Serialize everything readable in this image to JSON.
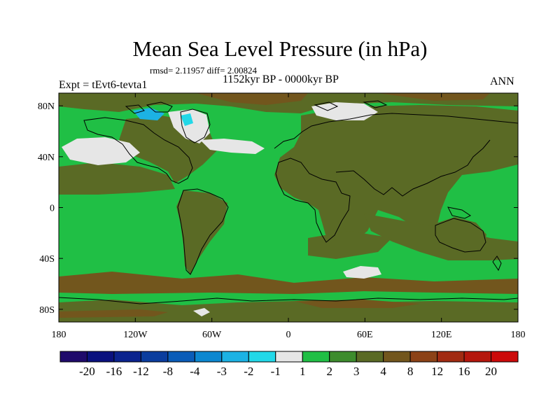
{
  "title": "Mean Sea Level Pressure (in hPa)",
  "stats_line": "rmsd= 2.11957 diff= 2.00824",
  "subtitle": "1152kyr BP - 0000kyr BP",
  "experiment_label": "Expt = tEvt6-tevta1",
  "season_label": "ANN",
  "map": {
    "projection": "cylindrical equidistant",
    "lon_range": [
      -180,
      180
    ],
    "lat_range": [
      -90,
      90
    ],
    "lat_tick_labels": [
      "80N",
      "40N",
      "0",
      "40S",
      "80S"
    ],
    "lat_tick_values": [
      80,
      40,
      0,
      -40,
      -80
    ],
    "lon_tick_labels": [
      "180",
      "120W",
      "60W",
      "0",
      "60E",
      "120E",
      "180"
    ],
    "lon_tick_values": [
      -180,
      -120,
      -60,
      0,
      60,
      120,
      180
    ],
    "dominant_ocean_range": "1 to 2",
    "dominant_land_range": "2 to 4"
  },
  "colorbar": {
    "labels": [
      "-20",
      "-16",
      "-12",
      "-8",
      "-4",
      "-3",
      "-2",
      "-1",
      "1",
      "2",
      "3",
      "4",
      "8",
      "12",
      "16",
      "20"
    ],
    "colors": [
      "#1f0a6b",
      "#0a117e",
      "#0b238e",
      "#0b3d9e",
      "#0a5cb8",
      "#0c87d0",
      "#1cb2e4",
      "#22d8e8",
      "#e6e6e6",
      "#20bf45",
      "#3d8c2d",
      "#5a6a25",
      "#72561d",
      "#8c4217",
      "#a12b12",
      "#b5170d",
      "#cc0a0a"
    ]
  }
}
